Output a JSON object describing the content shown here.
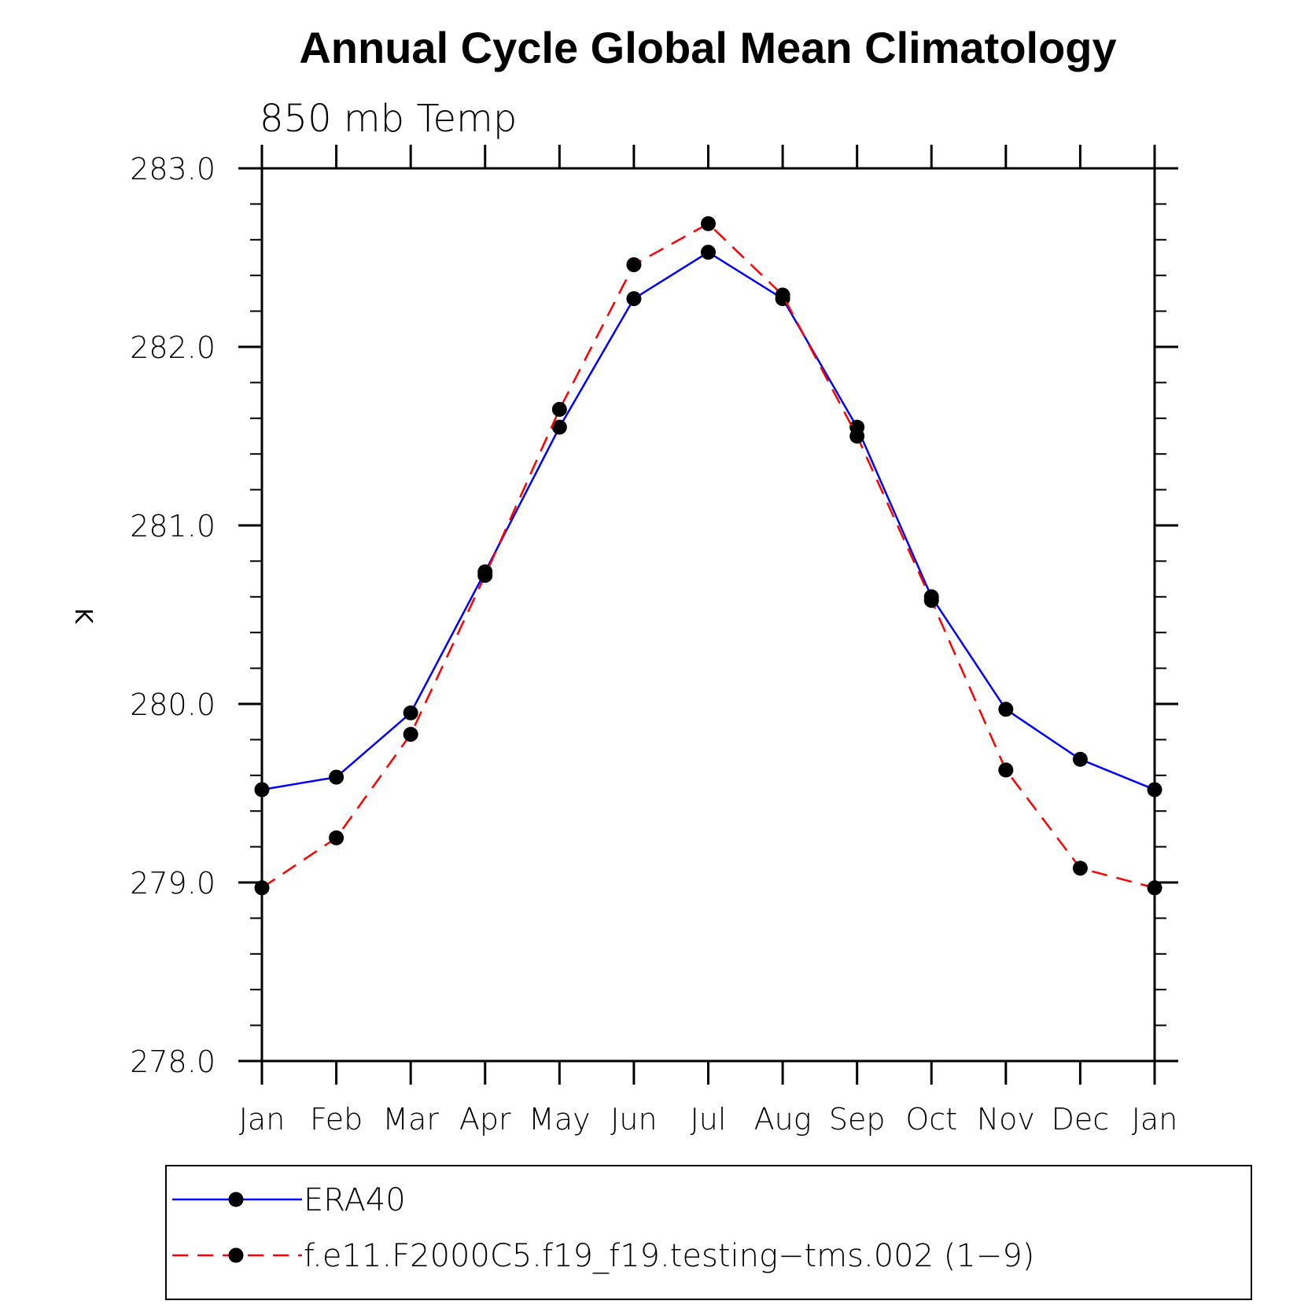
{
  "title": "Annual Cycle Global Mean Climatology",
  "subtitle": "850 mb Temp",
  "chart_data": {
    "type": "line",
    "title": "Annual Cycle Global Mean Climatology",
    "subtitle": "850 mb Temp",
    "xlabel": "",
    "ylabel": "K",
    "categories": [
      "Jan",
      "Feb",
      "Mar",
      "Apr",
      "May",
      "Jun",
      "Jul",
      "Aug",
      "Sep",
      "Oct",
      "Nov",
      "Dec",
      "Jan"
    ],
    "ylim": [
      278.0,
      283.0
    ],
    "yticks": [
      "278.0",
      "279.0",
      "280.0",
      "281.0",
      "282.0",
      "283.0"
    ],
    "y_minor_step": 0.2,
    "grid": false,
    "legend_position": "bottom",
    "series": [
      {
        "name": "ERA40",
        "color": "#0000ff",
        "line_style": "solid",
        "marker": "filled-circle",
        "values": [
          279.52,
          279.59,
          279.95,
          280.74,
          281.55,
          282.27,
          282.53,
          282.27,
          281.55,
          280.6,
          279.97,
          279.69,
          279.52
        ]
      },
      {
        "name": "f.e11.F2000C5.f19_f19.testing−tms.002 (1−9)",
        "color": "#ff0000",
        "line_style": "dashed",
        "marker": "filled-circle",
        "values": [
          278.97,
          279.25,
          279.83,
          280.72,
          281.65,
          282.46,
          282.69,
          282.29,
          281.5,
          280.58,
          279.63,
          279.08,
          278.97
        ]
      }
    ]
  }
}
